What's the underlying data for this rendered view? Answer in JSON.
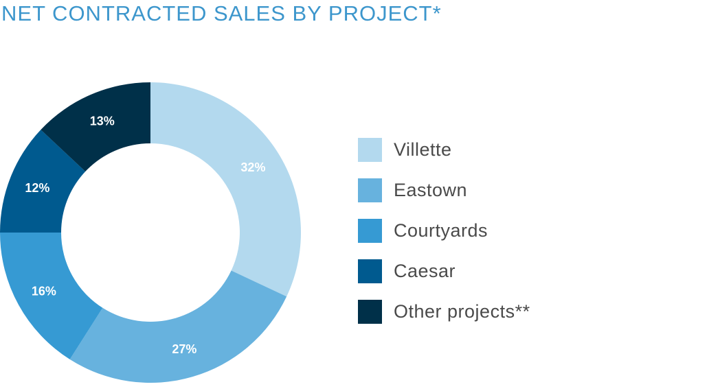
{
  "title": "NET CONTRACTED SALES BY PROJECT*",
  "colors": {
    "title": "#3c96cc",
    "label": "#ffffff",
    "legend_text": "#4a4a4a"
  },
  "chart_data": {
    "type": "pie",
    "donut": true,
    "start_angle_deg": 0,
    "direction": "clockwise",
    "categories": [
      "Villette",
      "Eastown",
      "Courtyards",
      "Caesar",
      "Other projects**"
    ],
    "values": [
      32,
      27,
      16,
      12,
      13
    ],
    "labels": [
      "32%",
      "27%",
      "16%",
      "12%",
      "13%"
    ],
    "unit": "%",
    "colors": [
      "#b3d9ee",
      "#67b2de",
      "#369ad3",
      "#005a8f",
      "#003049"
    ],
    "legend_position": "right"
  }
}
